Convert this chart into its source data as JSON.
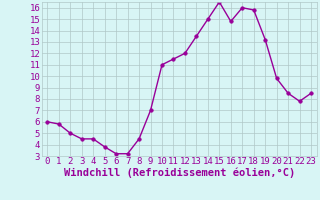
{
  "x": [
    0,
    1,
    2,
    3,
    4,
    5,
    6,
    7,
    8,
    9,
    10,
    11,
    12,
    13,
    14,
    15,
    16,
    17,
    18,
    19,
    20,
    21,
    22,
    23
  ],
  "y": [
    6,
    5.8,
    5,
    4.5,
    4.5,
    3.8,
    3.2,
    3.2,
    4.5,
    7,
    11,
    11.5,
    12,
    13.5,
    15,
    16.5,
    14.8,
    16,
    15.8,
    13.2,
    9.8,
    8.5,
    7.8,
    8.5
  ],
  "line_color": "#990099",
  "marker": "o",
  "markersize": 2.5,
  "linewidth": 1.0,
  "bg_color": "#d8f5f5",
  "grid_color": "#b0c8c8",
  "xlabel": "Windchill (Refroidissement éolien,°C)",
  "ylabel": "",
  "ylim": [
    3,
    16.5
  ],
  "xlim": [
    -0.5,
    23.5
  ],
  "yticks": [
    3,
    4,
    5,
    6,
    7,
    8,
    9,
    10,
    11,
    12,
    13,
    14,
    15,
    16
  ],
  "xticks": [
    0,
    1,
    2,
    3,
    4,
    5,
    6,
    7,
    8,
    9,
    10,
    11,
    12,
    13,
    14,
    15,
    16,
    17,
    18,
    19,
    20,
    21,
    22,
    23
  ],
  "tick_color": "#990099",
  "label_color": "#990099",
  "xlabel_fontsize": 7.5,
  "tick_fontsize": 6.5
}
